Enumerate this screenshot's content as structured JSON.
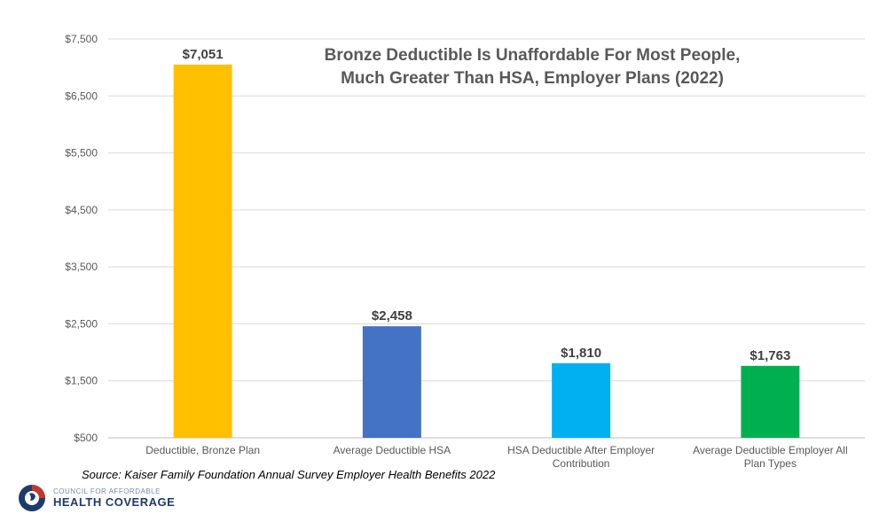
{
  "chart_data": {
    "type": "bar",
    "title_lines": [
      "Bronze Deductible Is Unaffordable For Most People,",
      "Much Greater Than HSA, Employer Plans (2022)"
    ],
    "categories": [
      [
        "Deductible, Bronze Plan"
      ],
      [
        "Average Deductible HSA"
      ],
      [
        "HSA Deductible After Employer",
        "Contribution"
      ],
      [
        "Average Deductible Employer All",
        "Plan Types"
      ]
    ],
    "values": [
      7051,
      2458,
      1810,
      1763
    ],
    "value_labels": [
      "$7,051",
      "$2,458",
      "$1,810",
      "$1,763"
    ],
    "bar_colors": [
      "#FFC000",
      "#4472C4",
      "#00B0F0",
      "#00B050"
    ],
    "ylim": [
      500,
      7500
    ],
    "y_ticks": [
      500,
      1500,
      2500,
      3500,
      4500,
      5500,
      6500,
      7500
    ],
    "y_tick_labels": [
      "$500",
      "$1,500",
      "$2,500",
      "$3,500",
      "$4,500",
      "$5,500",
      "$6,500",
      "$7,500"
    ],
    "gridlines": true,
    "legend": "none"
  },
  "source": "Source: Kaiser Family Foundation Annual Survey Employer Health Benefits 2022",
  "logo": {
    "line1": "COUNCIL FOR AFFORDABLE",
    "line2": "HEALTH COVERAGE"
  }
}
